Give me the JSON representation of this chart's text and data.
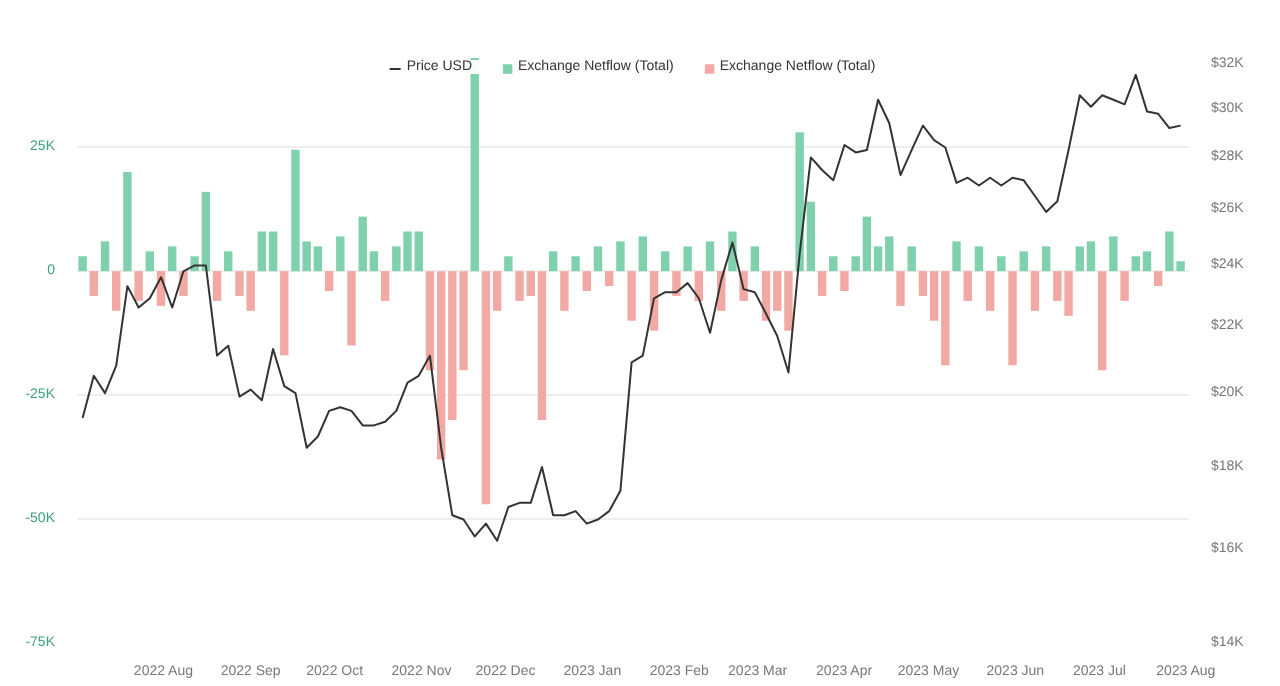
{
  "chart_data": {
    "type": "bar",
    "legend": "top",
    "grid": "y",
    "x": [
      "2022-07-03",
      "2022-07-07",
      "2022-07-11",
      "2022-07-15",
      "2022-07-19",
      "2022-07-23",
      "2022-07-27",
      "2022-07-31",
      "2022-08-04",
      "2022-08-08",
      "2022-08-12",
      "2022-08-16",
      "2022-08-20",
      "2022-08-24",
      "2022-08-28",
      "2022-09-01",
      "2022-09-05",
      "2022-09-09",
      "2022-09-13",
      "2022-09-17",
      "2022-09-21",
      "2022-09-25",
      "2022-09-29",
      "2022-10-03",
      "2022-10-07",
      "2022-10-11",
      "2022-10-15",
      "2022-10-19",
      "2022-10-23",
      "2022-10-27",
      "2022-10-31",
      "2022-11-04",
      "2022-11-08",
      "2022-11-12",
      "2022-11-16",
      "2022-11-20",
      "2022-11-24",
      "2022-11-28",
      "2022-12-02",
      "2022-12-06",
      "2022-12-10",
      "2022-12-14",
      "2022-12-18",
      "2022-12-22",
      "2022-12-26",
      "2022-12-30",
      "2023-01-03",
      "2023-01-07",
      "2023-01-11",
      "2023-01-15",
      "2023-01-19",
      "2023-01-23",
      "2023-01-27",
      "2023-01-31",
      "2023-02-04",
      "2023-02-08",
      "2023-02-12",
      "2023-02-16",
      "2023-02-20",
      "2023-02-24",
      "2023-02-28",
      "2023-03-04",
      "2023-03-08",
      "2023-03-12",
      "2023-03-16",
      "2023-03-20",
      "2023-03-24",
      "2023-03-28",
      "2023-04-01",
      "2023-04-05",
      "2023-04-09",
      "2023-04-13",
      "2023-04-17",
      "2023-04-21",
      "2023-04-25",
      "2023-04-29",
      "2023-05-03",
      "2023-05-07",
      "2023-05-11",
      "2023-05-15",
      "2023-05-19",
      "2023-05-23",
      "2023-05-27",
      "2023-05-31",
      "2023-06-04",
      "2023-06-08",
      "2023-06-12",
      "2023-06-16",
      "2023-06-20",
      "2023-06-24",
      "2023-06-28",
      "2023-07-02",
      "2023-07-06",
      "2023-07-10",
      "2023-07-14",
      "2023-07-18",
      "2023-07-22",
      "2023-07-26",
      "2023-07-30"
    ],
    "xlim": [
      "2022-07-01",
      "2023-08-02"
    ],
    "xticks": [
      {
        "value": "2022-08-01",
        "label": "2022 Aug"
      },
      {
        "value": "2022-09-01",
        "label": "2022 Sep"
      },
      {
        "value": "2022-10-01",
        "label": "2022 Oct"
      },
      {
        "value": "2022-11-01",
        "label": "2022 Nov"
      },
      {
        "value": "2022-12-01",
        "label": "2022 Dec"
      },
      {
        "value": "2023-01-01",
        "label": "2023 Jan"
      },
      {
        "value": "2023-02-01",
        "label": "2023 Feb"
      },
      {
        "value": "2023-03-01",
        "label": "2023 Mar"
      },
      {
        "value": "2023-04-01",
        "label": "2023 Apr"
      },
      {
        "value": "2023-05-01",
        "label": "2023 May"
      },
      {
        "value": "2023-06-01",
        "label": "2023 Jun"
      },
      {
        "value": "2023-07-01",
        "label": "2023 Jul"
      },
      {
        "value": "2023-08-01",
        "label": "2023 Aug"
      }
    ],
    "ylim": [
      -75000,
      44000
    ],
    "yticks": [
      {
        "value": -75000,
        "label": "-75K"
      },
      {
        "value": -50000,
        "label": "-50K"
      },
      {
        "value": -25000,
        "label": "-25K"
      },
      {
        "value": 0,
        "label": "0"
      },
      {
        "value": 25000,
        "label": "25K"
      }
    ],
    "log": "y2",
    "y2lim": [
      14000,
      32500
    ],
    "y2ticks": [
      {
        "value": 14000,
        "label": "$14K"
      },
      {
        "value": 16000,
        "label": "$16K"
      },
      {
        "value": 18000,
        "label": "$18K"
      },
      {
        "value": 20000,
        "label": "$20K"
      },
      {
        "value": 22000,
        "label": "$22K"
      },
      {
        "value": 24000,
        "label": "$24K"
      },
      {
        "value": 26000,
        "label": "$26K"
      },
      {
        "value": 28000,
        "label": "$28K"
      },
      {
        "value": 30000,
        "label": "$30K"
      },
      {
        "value": 32000,
        "label": "$32K"
      }
    ],
    "series": [
      {
        "name": "Price USD",
        "type": "line",
        "axis": "y2",
        "color": "#333333",
        "values": [
          19300,
          20500,
          20000,
          20800,
          23300,
          22600,
          22900,
          23600,
          22600,
          23800,
          24000,
          24000,
          21100,
          21400,
          19900,
          20100,
          19800,
          21300,
          20200,
          20000,
          18500,
          18800,
          19500,
          19600,
          19500,
          19100,
          19100,
          19200,
          19500,
          20300,
          20500,
          21100,
          18500,
          16800,
          16700,
          16300,
          16600,
          16200,
          17000,
          17100,
          17100,
          18000,
          16800,
          16800,
          16900,
          16600,
          16700,
          16900,
          17400,
          20900,
          21100,
          22900,
          23100,
          23100,
          23400,
          22900,
          21800,
          23500,
          24800,
          23200,
          23100,
          22400,
          21700,
          20600,
          24400,
          28000,
          27500,
          27100,
          28500,
          28200,
          28300,
          30400,
          29400,
          27300,
          28300,
          29300,
          28700,
          28400,
          27000,
          27200,
          26900,
          27200,
          26900,
          27200,
          27100,
          26500,
          25900,
          26300,
          28300,
          30600,
          30100,
          30600,
          30400,
          30200,
          31500,
          29900,
          29800,
          29200,
          29300
        ]
      },
      {
        "name": "Exchange Netflow (Total)",
        "color": "#7fd1ae",
        "values": [
          3000,
          null,
          6000,
          null,
          20000,
          null,
          4000,
          null,
          5000,
          null,
          3000,
          16000,
          null,
          4000,
          null,
          null,
          8000,
          8000,
          null,
          24500,
          6000,
          5000,
          null,
          7000,
          null,
          11000,
          4000,
          null,
          5000,
          8000,
          8000,
          null,
          null,
          null,
          null,
          43000,
          null,
          null,
          3000,
          null,
          null,
          null,
          4000,
          null,
          3000,
          null,
          5000,
          null,
          6000,
          null,
          7000,
          null,
          4000,
          null,
          5000,
          null,
          6000,
          null,
          8000,
          null,
          5000,
          null,
          null,
          null,
          28000,
          14000,
          null,
          3000,
          null,
          3000,
          11000,
          5000,
          7000,
          null,
          5000,
          null,
          null,
          null,
          6000,
          null,
          5000,
          null,
          3000,
          null,
          4000,
          null,
          5000,
          null,
          null,
          5000,
          6000,
          null,
          7000,
          null,
          3000,
          4000,
          null,
          8000,
          2000
        ]
      },
      {
        "name": "Exchange Netflow (Total)",
        "color": "#f2a9a3",
        "values": [
          null,
          -5000,
          null,
          -8000,
          null,
          -6000,
          null,
          -7000,
          null,
          -5000,
          null,
          null,
          -6000,
          null,
          -5000,
          -8000,
          null,
          null,
          -17000,
          null,
          null,
          null,
          -4000,
          null,
          -15000,
          null,
          null,
          -6000,
          null,
          null,
          null,
          -20000,
          -38000,
          -30000,
          -20000,
          null,
          -47000,
          -8000,
          null,
          -6000,
          -5000,
          -30000,
          null,
          -8000,
          null,
          -4000,
          null,
          -3000,
          null,
          -10000,
          null,
          -12000,
          null,
          -5000,
          null,
          -6000,
          null,
          -8000,
          null,
          -6000,
          null,
          -10000,
          -8000,
          -12000,
          null,
          null,
          -5000,
          null,
          -4000,
          null,
          null,
          null,
          null,
          -7000,
          null,
          -5000,
          -10000,
          -19000,
          null,
          -6000,
          null,
          -8000,
          null,
          -19000,
          null,
          -8000,
          null,
          -6000,
          -9000,
          null,
          null,
          -20000,
          null,
          -6000,
          null,
          null,
          -3000,
          null,
          null
        ]
      }
    ]
  }
}
